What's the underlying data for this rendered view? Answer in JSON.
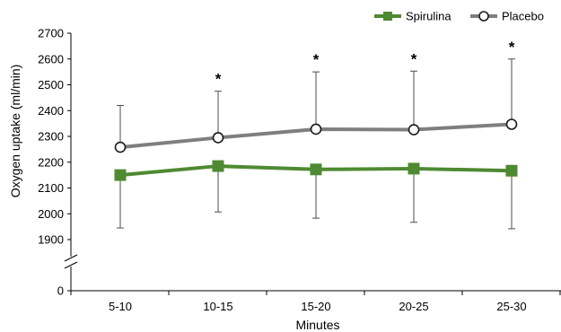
{
  "chart_data": {
    "type": "line",
    "xlabel": "Minutes",
    "ylabel": "Oxygen uptake (ml/min)",
    "categories": [
      "5-10",
      "10-15",
      "15-20",
      "20-25",
      "25-30"
    ],
    "y_ticks": [
      "0",
      "1900",
      "2000",
      "2100",
      "2200",
      "2300",
      "2400",
      "2500",
      "2600",
      "2700"
    ],
    "ylim": [
      1900,
      2700
    ],
    "axis_break": true,
    "grid": false,
    "legend_position": "top-right",
    "series": [
      {
        "name": "Spirulina",
        "values": [
          2150,
          2185,
          2172,
          2175,
          2167
        ],
        "error_low": [
          1945,
          2007,
          1983,
          1967,
          1942
        ],
        "error_high": null,
        "color": "#4e8a32",
        "marker": "filled-square"
      },
      {
        "name": "Placebo",
        "values": [
          2258,
          2295,
          2328,
          2326,
          2347
        ],
        "error_low": null,
        "error_high": [
          2420,
          2475,
          2550,
          2553,
          2600
        ],
        "color": "#7f7f7f",
        "marker": "open-circle"
      }
    ],
    "significance": [
      "",
      "*",
      "*",
      "*",
      "*"
    ]
  }
}
